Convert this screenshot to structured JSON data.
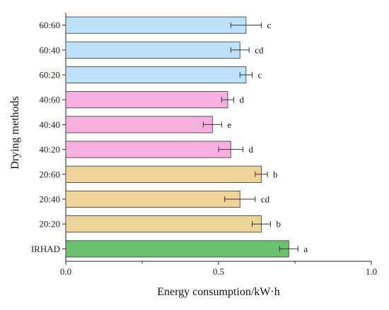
{
  "chart_data": {
    "type": "bar",
    "orientation": "horizontal",
    "title": "",
    "xlabel": "Energy consumption/kW·h",
    "ylabel": "Drying methods",
    "xlim": [
      0,
      1.0
    ],
    "xticks": [
      "0.0",
      "0.5",
      "1.0"
    ],
    "grid": false,
    "bar_edge_color": "#333333",
    "errorbar_color": "#333333",
    "categories": [
      "60:60",
      "60:40",
      "60:20",
      "40:60",
      "40:40",
      "40:20",
      "20:60",
      "20:40",
      "20:20",
      "IRHAD"
    ],
    "values": [
      0.59,
      0.57,
      0.59,
      0.53,
      0.48,
      0.54,
      0.64,
      0.57,
      0.64,
      0.73
    ],
    "errors": [
      0.05,
      0.03,
      0.02,
      0.02,
      0.03,
      0.04,
      0.02,
      0.05,
      0.03,
      0.03
    ],
    "significance": [
      "c",
      "cd",
      "c",
      "d",
      "e",
      "d",
      "b",
      "cd",
      "b",
      "a"
    ],
    "colors": [
      "#bfe2fb",
      "#bfe2fb",
      "#bfe2fb",
      "#f7aee0",
      "#f7aee0",
      "#f7aee0",
      "#efd49a",
      "#efd49a",
      "#efd49a",
      "#6cc26c"
    ]
  }
}
